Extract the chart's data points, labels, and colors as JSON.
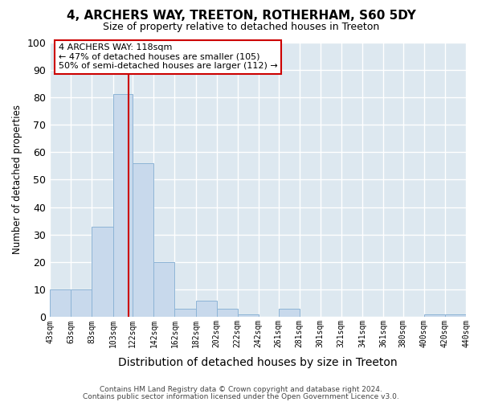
{
  "title": "4, ARCHERS WAY, TREETON, ROTHERHAM, S60 5DY",
  "subtitle": "Size of property relative to detached houses in Treeton",
  "xlabel": "Distribution of detached houses by size in Treeton",
  "ylabel": "Number of detached properties",
  "bar_color": "#c8d9ec",
  "bar_edge_color": "#8db4d6",
  "background_color": "#dde8f0",
  "grid_color": "#ffffff",
  "fig_background": "#ffffff",
  "vline_x": 118,
  "vline_color": "#cc0000",
  "bin_edges": [
    43,
    63,
    83,
    103,
    122,
    142,
    162,
    182,
    202,
    222,
    242,
    261,
    281,
    301,
    321,
    341,
    361,
    380,
    400,
    420,
    440
  ],
  "bar_heights": [
    10,
    10,
    33,
    81,
    56,
    20,
    3,
    6,
    3,
    1,
    0,
    3,
    0,
    0,
    0,
    0,
    0,
    0,
    1,
    1
  ],
  "tick_labels": [
    "43sqm",
    "63sqm",
    "83sqm",
    "103sqm",
    "122sqm",
    "142sqm",
    "162sqm",
    "182sqm",
    "202sqm",
    "222sqm",
    "242sqm",
    "261sqm",
    "281sqm",
    "301sqm",
    "321sqm",
    "341sqm",
    "361sqm",
    "380sqm",
    "400sqm",
    "420sqm",
    "440sqm"
  ],
  "ylim": [
    0,
    100
  ],
  "yticks": [
    0,
    10,
    20,
    30,
    40,
    50,
    60,
    70,
    80,
    90,
    100
  ],
  "annotation_title": "4 ARCHERS WAY: 118sqm",
  "annotation_line1": "← 47% of detached houses are smaller (105)",
  "annotation_line2": "50% of semi-detached houses are larger (112) →",
  "annotation_box_color": "#ffffff",
  "annotation_box_edge": "#cc0000",
  "footer1": "Contains HM Land Registry data © Crown copyright and database right 2024.",
  "footer2": "Contains public sector information licensed under the Open Government Licence v3.0."
}
